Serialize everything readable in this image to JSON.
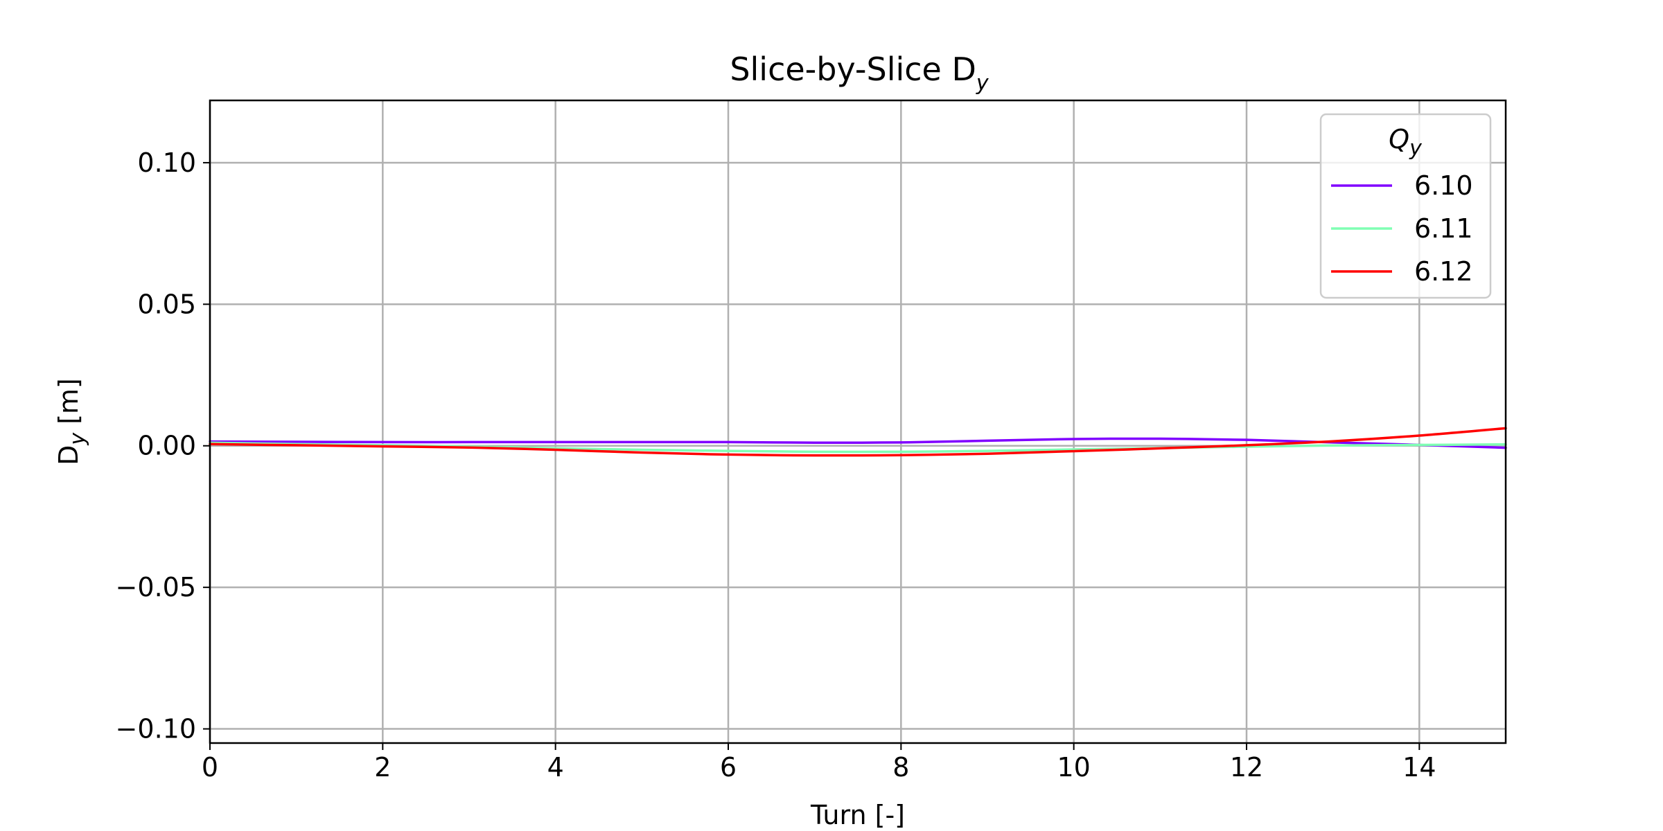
{
  "chart_data": {
    "type": "line",
    "title": "Slice-by-Slice D",
    "title_subscript": "y",
    "xlabel": "Turn [-]",
    "ylabel": "D",
    "ylabel_subscript": "y",
    "ylabel_unit": " [m]",
    "xlim": [
      0,
      15
    ],
    "ylim": [
      -0.105,
      0.122
    ],
    "xticks": [
      0,
      2,
      4,
      6,
      8,
      10,
      12,
      14
    ],
    "xtick_labels": [
      "0",
      "2",
      "4",
      "6",
      "8",
      "10",
      "12",
      "14"
    ],
    "yticks": [
      0.1,
      0.05,
      0.0,
      -0.05,
      -0.1
    ],
    "ytick_labels": [
      "0.10",
      "0.05",
      "0.00",
      "−0.05",
      "−0.10"
    ],
    "grid": true,
    "legend": {
      "title": "Q",
      "title_subscript": "y",
      "position": "top-right"
    },
    "x": [
      0,
      1,
      2,
      3,
      4,
      5,
      6,
      7,
      8,
      9,
      10,
      11,
      12,
      13,
      14,
      15
    ],
    "series": [
      {
        "name": "6.10",
        "color": "#8000ff",
        "values": [
          0.0015,
          0.0014,
          0.0013,
          0.0013,
          0.0013,
          0.0013,
          0.0013,
          0.0011,
          0.0012,
          0.0018,
          0.0024,
          0.0025,
          0.0021,
          0.0012,
          0.0003,
          -0.0007
        ]
      },
      {
        "name": "6.11",
        "color": "#80ffb4",
        "values": [
          0.0011,
          0.0006,
          0.0002,
          -0.0003,
          -0.0009,
          -0.0014,
          -0.0018,
          -0.0021,
          -0.0021,
          -0.0018,
          -0.0013,
          -0.0008,
          -0.0003,
          0.0001,
          0.0003,
          0.0005
        ]
      },
      {
        "name": "6.12",
        "color": "#ff0000",
        "values": [
          0.0006,
          0.0002,
          -0.0002,
          -0.0006,
          -0.0014,
          -0.0024,
          -0.0031,
          -0.0034,
          -0.0033,
          -0.0028,
          -0.0019,
          -0.0009,
          0.0002,
          0.0016,
          0.0036,
          0.0062
        ]
      }
    ]
  }
}
